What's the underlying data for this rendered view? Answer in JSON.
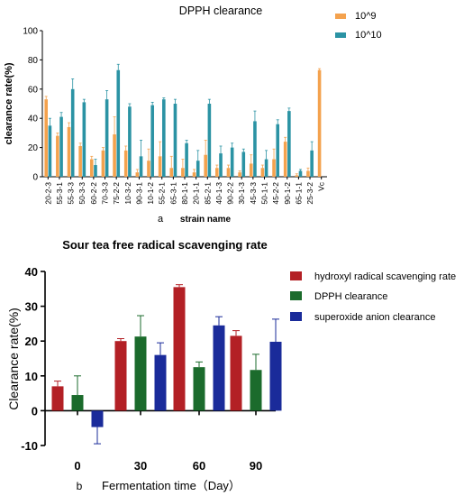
{
  "chart_data": [
    {
      "type": "bar",
      "title": "DPPH clearance",
      "xlabel": "strain name",
      "panel_label": "a",
      "ylabel": "clearance rate(%)",
      "ylim": [
        0,
        100
      ],
      "yticks": [
        0,
        20,
        40,
        60,
        80,
        100
      ],
      "legend_position": "top-right",
      "categories": [
        "20-2-3",
        "55-3-1",
        "55-3-3",
        "50-3-3",
        "60-2-2",
        "70-3-3",
        "75-2-2",
        "10-3-2",
        "90-3-1",
        "10-1-2",
        "55-2-1",
        "65-3-1",
        "80-1-1",
        "20-1-1",
        "85-2-1",
        "40-1-3",
        "90-2-2",
        "30-1-3",
        "45-3-3",
        "50-1-1",
        "45-2-2",
        "90-1-2",
        "65-1-1",
        "25-3-2",
        "Vc"
      ],
      "series": [
        {
          "name": "10^9",
          "color": "#f4a24e",
          "values": [
            53,
            28,
            34,
            21,
            12,
            18,
            29,
            18,
            3,
            11,
            14,
            6,
            6,
            3,
            15,
            6,
            6,
            3,
            9,
            6,
            12,
            24,
            1,
            4,
            73
          ],
          "errors": [
            2,
            2,
            3,
            2,
            2,
            2,
            12,
            3,
            2,
            8,
            10,
            8,
            6,
            2,
            10,
            2,
            2,
            1,
            6,
            2,
            7,
            3,
            1,
            2,
            1
          ]
        },
        {
          "name": "10^10",
          "color": "#2b93a4",
          "values": [
            35,
            41,
            60,
            51,
            8,
            53,
            73,
            48,
            14,
            49,
            53,
            50,
            23,
            11,
            50,
            16,
            20,
            17,
            38,
            12,
            36,
            45,
            4,
            18,
            0
          ],
          "errors": [
            5,
            3,
            7,
            2,
            4,
            6,
            4,
            2,
            11,
            2,
            1,
            3,
            2,
            7,
            3,
            5,
            3,
            2,
            7,
            6,
            3,
            2,
            1,
            6,
            0
          ]
        }
      ]
    },
    {
      "type": "bar",
      "title": "Sour tea free radical scavenging rate",
      "xlabel": "Fermentation time（Day）",
      "panel_label": "b",
      "ylabel": "Clearance rate(%)",
      "ylim": [
        -10,
        40
      ],
      "yticks": [
        -10,
        0,
        10,
        20,
        30,
        40
      ],
      "legend_position": "right",
      "categories": [
        "0",
        "30",
        "60",
        "90"
      ],
      "series": [
        {
          "name": "hydroxyl radical scavenging rate",
          "color": "#b32025",
          "values": [
            7,
            20,
            35.5,
            21.5
          ],
          "errors": [
            1.5,
            0.7,
            0.7,
            1.5
          ]
        },
        {
          "name": "DPPH clearance",
          "color": "#1b6b2c",
          "values": [
            4.5,
            21.3,
            12.5,
            11.7
          ],
          "errors": [
            5.5,
            6,
            1.5,
            4.5
          ]
        },
        {
          "name": "superoxide anion clearance",
          "color": "#1a2b9a",
          "values": [
            -4.7,
            16,
            24.5,
            19.8
          ],
          "errors": [
            4.8,
            3.5,
            2.5,
            6.5
          ]
        }
      ]
    }
  ]
}
